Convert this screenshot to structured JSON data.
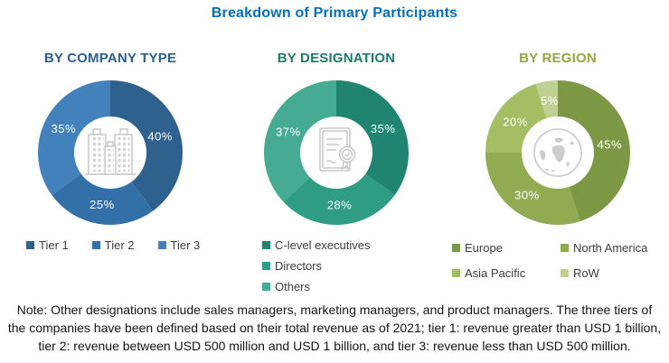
{
  "page": {
    "title": "Breakdown of Primary Participants",
    "title_color": "#0070C0",
    "note": "Note: Other designations include sales managers, marketing managers, and product managers.  The three tiers of the companies have been defined based on their total revenue as of 2021; tier 1: revenue greater than USD 1 billion, tier 2: revenue between USD 500 million and USD 1 billion, and tier 3: revenue less than USD 500 million."
  },
  "chart_data": [
    {
      "type": "pie",
      "title": "BY COMPANY TYPE",
      "title_color": "#2A5F8E",
      "icon": "buildings-icon",
      "donut": true,
      "legend_position": "bottom-horizontal",
      "categories": [
        "Tier 1",
        "Tier 2",
        "Tier 3"
      ],
      "values": [
        40,
        25,
        35
      ],
      "segments": [
        {
          "label": "Tier 1",
          "value": 40,
          "color": "#2E618E"
        },
        {
          "label": "Tier 2",
          "value": 25,
          "color": "#3470A8"
        },
        {
          "label": "Tier 3",
          "value": 35,
          "color": "#4281BC"
        }
      ]
    },
    {
      "type": "pie",
      "title": "BY DESIGNATION",
      "title_color": "#1E7A68",
      "icon": "certificate-icon",
      "donut": true,
      "legend_position": "bottom-vertical",
      "categories": [
        "C-level executives",
        "Directors",
        "Others"
      ],
      "values": [
        35,
        28,
        37
      ],
      "segments": [
        {
          "label": "C-level executives",
          "value": 35,
          "color": "#1F8470"
        },
        {
          "label": "Directors",
          "value": 28,
          "color": "#2F9D84"
        },
        {
          "label": "Others",
          "value": 37,
          "color": "#45AB93"
        }
      ]
    },
    {
      "type": "pie",
      "title": "BY REGION",
      "title_color": "#97A63F",
      "icon": "globe-icon",
      "donut": true,
      "legend_position": "bottom-grid-2col",
      "categories": [
        "Europe",
        "North America",
        "Asia Pacific",
        "RoW"
      ],
      "values": [
        45,
        30,
        20,
        5
      ],
      "segments": [
        {
          "label": "Europe",
          "value": 45,
          "color": "#7D9845"
        },
        {
          "label": "North America",
          "value": 30,
          "color": "#90AB52"
        },
        {
          "label": "Asia Pacific",
          "value": 20,
          "color": "#A3BE63"
        },
        {
          "label": "RoW",
          "value": 5,
          "color": "#BED193"
        }
      ]
    }
  ]
}
